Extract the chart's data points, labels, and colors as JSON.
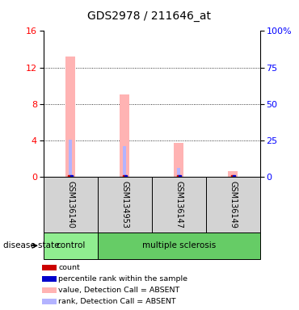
{
  "title": "GDS2978 / 211646_at",
  "samples": [
    "GSM136140",
    "GSM134953",
    "GSM136147",
    "GSM136149"
  ],
  "pink_values": [
    13.2,
    9.0,
    3.7,
    0.65
  ],
  "blue_rank_values": [
    4.05,
    3.35,
    1.0,
    0.15
  ],
  "left_ylim": [
    0,
    16
  ],
  "left_yticks": [
    0,
    4,
    8,
    12,
    16
  ],
  "right_ylim": [
    0,
    100
  ],
  "right_yticks": [
    0,
    25,
    50,
    75,
    100
  ],
  "right_yticklabels": [
    "0",
    "25",
    "50",
    "75",
    "100%"
  ],
  "pink_color": "#ffb3b3",
  "blue_rank_color": "#b3b3ff",
  "red_count_color": "#cc0000",
  "blue_pct_color": "#0000cc",
  "control_color": "#90ee90",
  "ms_color": "#66cc66",
  "sample_box_color": "#d3d3d3",
  "title_fontsize": 10,
  "legend_items": [
    [
      "#cc0000",
      "count"
    ],
    [
      "#0000cc",
      "percentile rank within the sample"
    ],
    [
      "#ffb3b3",
      "value, Detection Call = ABSENT"
    ],
    [
      "#b3b3ff",
      "rank, Detection Call = ABSENT"
    ]
  ]
}
